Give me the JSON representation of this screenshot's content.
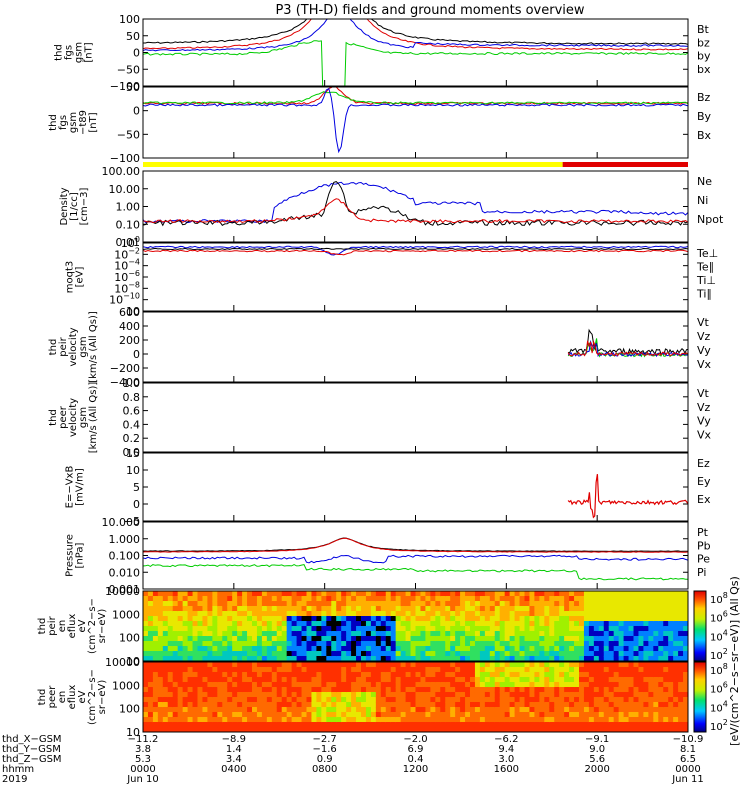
{
  "title": "P3 (TH-D) fields and ground moments overview",
  "colors": {
    "black": "#000000",
    "red": "#e00000",
    "green": "#00cc00",
    "blue": "#0000e0",
    "yellow": "#ffff00"
  },
  "chart_data": [
    {
      "type": "line",
      "panel": "fgs_gsm",
      "ylabel_lines": [
        "thd",
        "fgs",
        "gsm",
        "[nT]"
      ],
      "ylim": [
        -100,
        100
      ],
      "yticks": [
        "100",
        "50",
        "0",
        "−50",
        "−100"
      ],
      "legend": [
        {
          "label": "Bt",
          "color": "#000000"
        },
        {
          "label": "bz",
          "color": "#e00000"
        },
        {
          "label": "by",
          "color": "#00cc00"
        },
        {
          "label": "bx",
          "color": "#0000e0"
        }
      ]
    },
    {
      "type": "line",
      "panel": "fgs_gsm_t89",
      "ylabel_lines": [
        "thd",
        "fgs",
        "gsm",
        "−t89",
        "[nT]"
      ],
      "ylim": [
        -125,
        40
      ],
      "yticks": [
        "50",
        "0",
        "−50",
        "−100"
      ],
      "legend": [
        {
          "label": "Bz",
          "color": "#e00000"
        },
        {
          "label": "By",
          "color": "#00cc00"
        },
        {
          "label": "Bx",
          "color": "#0000e0"
        }
      ]
    },
    {
      "type": "line",
      "panel": "density",
      "ylabel_lines": [
        "Density",
        "[1/cc]",
        "[cm−3]"
      ],
      "ylim": [
        0.01,
        100
      ],
      "log": true,
      "yticks": [
        "100.00",
        "10.00",
        "1.00",
        "0.10",
        "0.01"
      ],
      "legend": [
        {
          "label": "Ne",
          "color": "#e00000"
        },
        {
          "label": "Ni",
          "color": "#000000"
        },
        {
          "label": "Npot",
          "color": "#0000e0"
        }
      ]
    },
    {
      "type": "line",
      "panel": "temperature",
      "ylabel_lines": [
        "moqt3",
        "[eV]"
      ],
      "log": true,
      "yticks": [
        "10",
        "10",
        "10",
        "10",
        "10",
        "10",
        "10"
      ],
      "yexps": [
        "0",
        "−2",
        "−4",
        "−6",
        "−8",
        "−10",
        ""
      ],
      "legend": [
        {
          "label": "Te⊥",
          "color": "#e00000"
        },
        {
          "label": "Te∥",
          "color": "#000000"
        },
        {
          "label": "Ti⊥",
          "color": "#00cc00"
        },
        {
          "label": "Ti∥",
          "color": "#00cc00"
        }
      ]
    },
    {
      "type": "line",
      "panel": "peir_velocity",
      "ylabel_lines": [
        "thd",
        "peir",
        "velocity",
        "gsm",
        "[km/s (All Qs)]"
      ],
      "ylim": [
        -400,
        600
      ],
      "yticks": [
        "600",
        "400",
        "200",
        "0",
        "−200",
        "−400"
      ],
      "legend": [
        {
          "label": "Vt",
          "color": "#000000"
        },
        {
          "label": "Vz",
          "color": "#e00000"
        },
        {
          "label": "Vy",
          "color": "#00cc00"
        },
        {
          "label": "Vx",
          "color": "#0000e0"
        }
      ]
    },
    {
      "type": "line",
      "panel": "peer_velocity",
      "ylabel_lines": [
        "thd",
        "peer",
        "velocity",
        "gsm",
        "[km/s (All Qs)]"
      ],
      "ylim": [
        0,
        1
      ],
      "yticks": [
        "1.0",
        "0.8",
        "0.6",
        "0.4",
        "0.2",
        "0.0"
      ],
      "legend": [
        {
          "label": "Vt",
          "color": "#000000"
        },
        {
          "label": "Vz",
          "color": "#e00000"
        },
        {
          "label": "Vy",
          "color": "#00cc00"
        },
        {
          "label": "Vx",
          "color": "#0000e0"
        }
      ]
    },
    {
      "type": "line",
      "panel": "efield",
      "ylabel_lines": [
        "E=−VxB",
        "[mV/m]"
      ],
      "ylim": [
        -5,
        15
      ],
      "yticks": [
        "15",
        "10",
        "5",
        "0",
        "−5"
      ],
      "legend": [
        {
          "label": "Ez",
          "color": "#e00000"
        },
        {
          "label": "Ey",
          "color": "#00cc00"
        },
        {
          "label": "Ex",
          "color": "#0000e0"
        }
      ]
    },
    {
      "type": "line",
      "panel": "pressure",
      "ylabel_lines": [
        "Pressure",
        "[nPa]"
      ],
      "ylim": [
        0.001,
        10
      ],
      "log": true,
      "yticks": [
        "10.000",
        "1.000",
        "0.100",
        "0.010",
        "0.001"
      ],
      "legend": [
        {
          "label": "Pt",
          "color": "#000000"
        },
        {
          "label": "Pb",
          "color": "#e00000"
        },
        {
          "label": "Pe",
          "color": "#00cc00"
        },
        {
          "label": "Pi",
          "color": "#0000e0"
        }
      ]
    },
    {
      "type": "heatmap",
      "panel": "peir_eflux",
      "ylabel_lines": [
        "thd",
        "peir",
        "en",
        "eflux",
        "eV",
        "(cm^2−s−",
        "sr−eV)"
      ],
      "ylim": [
        10,
        10000
      ],
      "log": true,
      "yticks": [
        "10000",
        "1000",
        "100",
        "10"
      ],
      "colorbar_ticks": [
        "8",
        "6",
        "4",
        "2"
      ]
    },
    {
      "type": "heatmap",
      "panel": "peer_eflux",
      "ylabel_lines": [
        "thd",
        "peer",
        "en",
        "eflux",
        "eV",
        "(cm^2−s−",
        "sr−eV)"
      ],
      "ylim": [
        10,
        10000
      ],
      "log": true,
      "yticks": [
        "10000",
        "1000",
        "100",
        "10"
      ],
      "colorbar_ticks": [
        "8",
        "6",
        "4",
        "2"
      ]
    }
  ],
  "colorbar_label": "[eV/(cm^2−s−sr−eV)] (All Qs)",
  "x_axis": {
    "row_labels": [
      "thd_X−GSM",
      "thd_Y−GSM",
      "thd_Z−GSM",
      "hhmm",
      "2019"
    ],
    "ticks": [
      {
        "x": "−11.2",
        "y": "3.8",
        "z": "5.3",
        "hhmm": "0000",
        "date": "Jun 10"
      },
      {
        "x": "−8.9",
        "y": "1.4",
        "z": "3.4",
        "hhmm": "0400",
        "date": ""
      },
      {
        "x": "−2.7",
        "y": "−1.6",
        "z": "0.9",
        "hhmm": "0800",
        "date": ""
      },
      {
        "x": "−2.0",
        "y": "6.9",
        "z": "0.4",
        "hhmm": "1200",
        "date": ""
      },
      {
        "x": "−6.2",
        "y": "9.4",
        "z": "3.0",
        "hhmm": "1600",
        "date": ""
      },
      {
        "x": "−9.1",
        "y": "9.0",
        "z": "5.6",
        "hhmm": "2000",
        "date": ""
      },
      {
        "x": "−10.9",
        "y": "8.1",
        "z": "6.5",
        "hhmm": "0000",
        "date": "Jun 11"
      }
    ]
  }
}
